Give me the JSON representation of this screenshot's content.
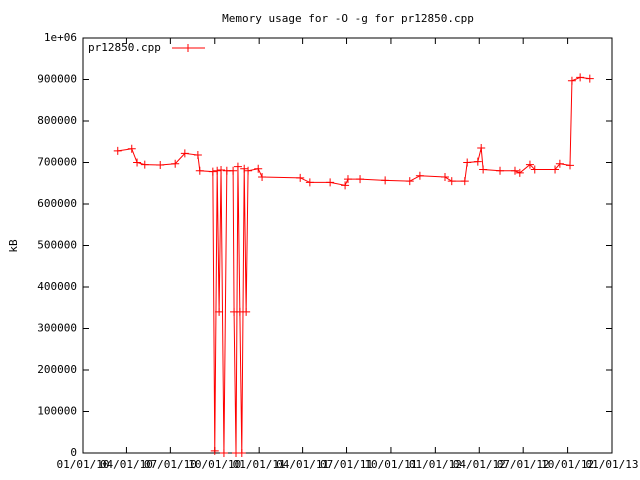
{
  "chart_data": {
    "type": "line",
    "title": "Memory usage for -O -g for pr12850.cpp",
    "y_label": "kB",
    "legend_position": "top-left",
    "x": [
      "2010-03-14",
      "2010-04-12",
      "2010-04-23",
      "2010-05-09",
      "2010-06-10",
      "2010-07-11",
      "2010-07-31",
      "2010-08-27",
      "2010-08-31",
      "2010-09-27",
      "2010-10-01",
      "2010-10-06",
      "2010-10-10",
      "2010-10-14",
      "2010-10-20",
      "2010-10-26",
      "2010-11-08",
      "2010-11-10",
      "2010-11-14",
      "2010-11-18",
      "2010-11-22",
      "2010-11-26",
      "2010-12-01",
      "2010-12-05",
      "2010-12-09",
      "2010-12-30",
      "2011-01-07",
      "2011-03-27",
      "2011-04-16",
      "2011-05-28",
      "2011-06-28",
      "2011-07-04",
      "2011-07-29",
      "2011-09-19",
      "2011-11-09",
      "2011-11-30",
      "2012-01-21",
      "2012-02-04",
      "2012-03-02",
      "2012-03-07",
      "2012-03-29",
      "2012-04-05",
      "2012-04-09",
      "2012-05-14",
      "2012-06-14",
      "2012-06-24",
      "2012-07-15",
      "2012-07-25",
      "2012-09-05",
      "2012-09-15",
      "2012-10-06",
      "2012-10-10",
      "2012-10-27",
      "2012-11-16"
    ],
    "series": [
      {
        "name": "pr12850.cpp",
        "color": "#ff0000",
        "values": [
          728000,
          733000,
          700000,
          695000,
          694000,
          697000,
          722000,
          718000,
          680000,
          678000,
          5000,
          680000,
          340000,
          682000,
          0,
          680000,
          680000,
          340000,
          0,
          690000,
          340000,
          0,
          685000,
          340000,
          680000,
          685000,
          665000,
          663000,
          652000,
          652000,
          645000,
          660000,
          660000,
          657000,
          655000,
          668000,
          665000,
          655000,
          655000,
          700000,
          702000,
          735000,
          683000,
          680000,
          680000,
          675000,
          695000,
          683000,
          683000,
          697000,
          693000,
          897000,
          905000,
          902000
        ]
      }
    ],
    "xlim": [
      "2010-01-01",
      "2013-01-01"
    ],
    "xticks": [
      {
        "value": "2010-01-01",
        "label": "01/01/10"
      },
      {
        "value": "2010-04-01",
        "label": "04/01/10"
      },
      {
        "value": "2010-07-01",
        "label": "07/01/10"
      },
      {
        "value": "2010-10-01",
        "label": "10/01/10"
      },
      {
        "value": "2011-01-01",
        "label": "01/01/11"
      },
      {
        "value": "2011-04-01",
        "label": "04/01/11"
      },
      {
        "value": "2011-07-01",
        "label": "07/01/11"
      },
      {
        "value": "2011-10-01",
        "label": "10/01/11"
      },
      {
        "value": "2012-01-01",
        "label": "01/01/12"
      },
      {
        "value": "2012-04-01",
        "label": "04/01/12"
      },
      {
        "value": "2012-07-01",
        "label": "07/01/12"
      },
      {
        "value": "2012-10-01",
        "label": "10/01/12"
      },
      {
        "value": "2013-01-01",
        "label": "01/01/13"
      }
    ],
    "ylim": [
      0,
      1000000
    ],
    "yticks": [
      0,
      100000,
      200000,
      300000,
      400000,
      500000,
      600000,
      700000,
      800000,
      900000,
      {
        "value": 1000000,
        "label": "1e+06"
      }
    ],
    "grid": false
  }
}
